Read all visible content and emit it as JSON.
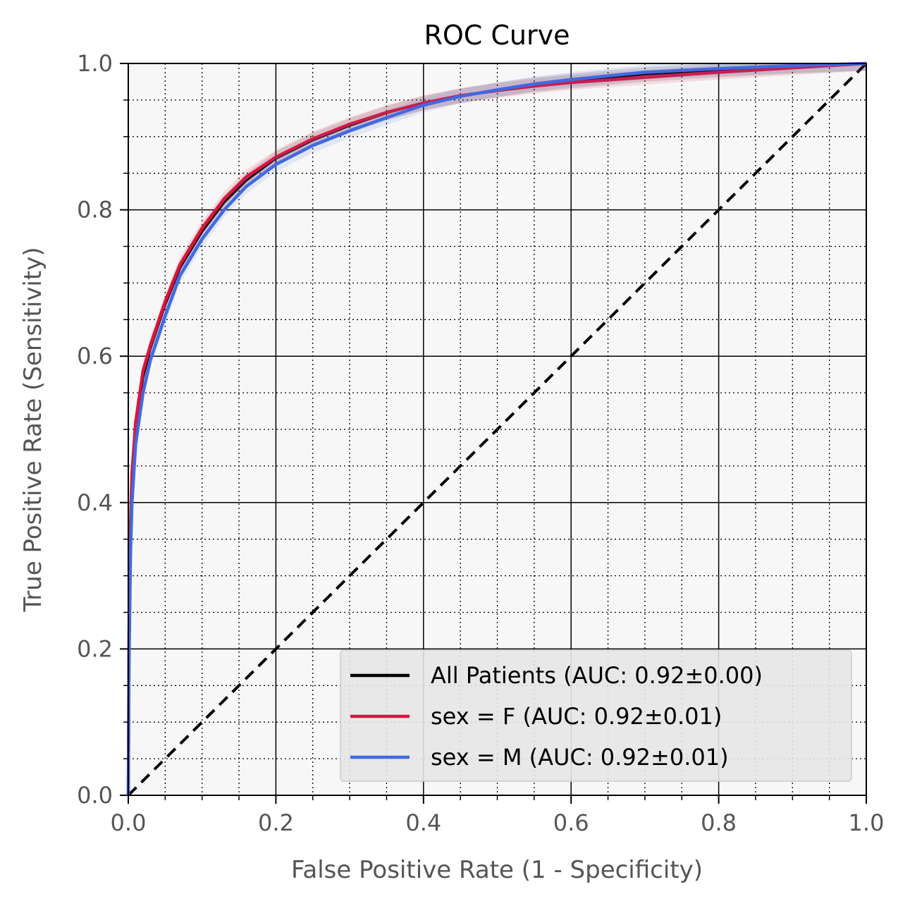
{
  "chart_data": {
    "type": "line",
    "title": "ROC Curve",
    "xlabel": "False Positive Rate (1 - Specificity)",
    "ylabel": "True Positive Rate (Sensitivity)",
    "xlim": [
      0,
      1
    ],
    "ylim": [
      0,
      1
    ],
    "x_ticks": [
      "0.0",
      "0.2",
      "0.4",
      "0.6",
      "0.8",
      "1.0"
    ],
    "y_ticks": [
      "0.0",
      "0.2",
      "0.4",
      "0.6",
      "0.8",
      "1.0"
    ],
    "grid": true,
    "minor_grid": true,
    "legend_position": "bottom-right",
    "reference_line": {
      "x": [
        0,
        1
      ],
      "y": [
        0,
        1
      ],
      "style": "dashed",
      "color": "#000000"
    },
    "series": [
      {
        "name": "All Patients (AUC: 0.92±0.00)",
        "color": "#000000",
        "x": [
          0,
          0.001,
          0.003,
          0.005,
          0.01,
          0.02,
          0.03,
          0.05,
          0.07,
          0.1,
          0.13,
          0.16,
          0.2,
          0.25,
          0.3,
          0.35,
          0.4,
          0.45,
          0.5,
          0.55,
          0.6,
          0.7,
          0.8,
          0.9,
          1.0
        ],
        "y": [
          0,
          0.2,
          0.35,
          0.42,
          0.5,
          0.57,
          0.61,
          0.67,
          0.72,
          0.77,
          0.81,
          0.84,
          0.87,
          0.895,
          0.915,
          0.932,
          0.946,
          0.956,
          0.964,
          0.971,
          0.976,
          0.985,
          0.991,
          0.996,
          1.0
        ]
      },
      {
        "name": "sex = F (AUC: 0.92±0.01)",
        "color": "#dc143c",
        "x": [
          0,
          0.001,
          0.003,
          0.005,
          0.01,
          0.02,
          0.03,
          0.05,
          0.07,
          0.1,
          0.13,
          0.16,
          0.2,
          0.25,
          0.3,
          0.35,
          0.4,
          0.45,
          0.5,
          0.55,
          0.6,
          0.7,
          0.8,
          0.9,
          1.0
        ],
        "y": [
          0,
          0.22,
          0.37,
          0.44,
          0.51,
          0.58,
          0.615,
          0.675,
          0.725,
          0.775,
          0.815,
          0.845,
          0.872,
          0.897,
          0.917,
          0.933,
          0.946,
          0.956,
          0.963,
          0.969,
          0.974,
          0.981,
          0.988,
          0.994,
          1.0
        ]
      },
      {
        "name": "sex = M (AUC: 0.92±0.01)",
        "color": "#4169e1",
        "x": [
          0,
          0.001,
          0.003,
          0.005,
          0.01,
          0.02,
          0.03,
          0.05,
          0.07,
          0.1,
          0.13,
          0.16,
          0.2,
          0.25,
          0.3,
          0.35,
          0.4,
          0.45,
          0.5,
          0.55,
          0.6,
          0.7,
          0.8,
          0.9,
          1.0
        ],
        "y": [
          0,
          0.18,
          0.33,
          0.4,
          0.48,
          0.55,
          0.595,
          0.655,
          0.71,
          0.76,
          0.8,
          0.832,
          0.862,
          0.888,
          0.908,
          0.926,
          0.943,
          0.955,
          0.964,
          0.972,
          0.978,
          0.988,
          0.993,
          0.997,
          1.0
        ]
      }
    ]
  }
}
